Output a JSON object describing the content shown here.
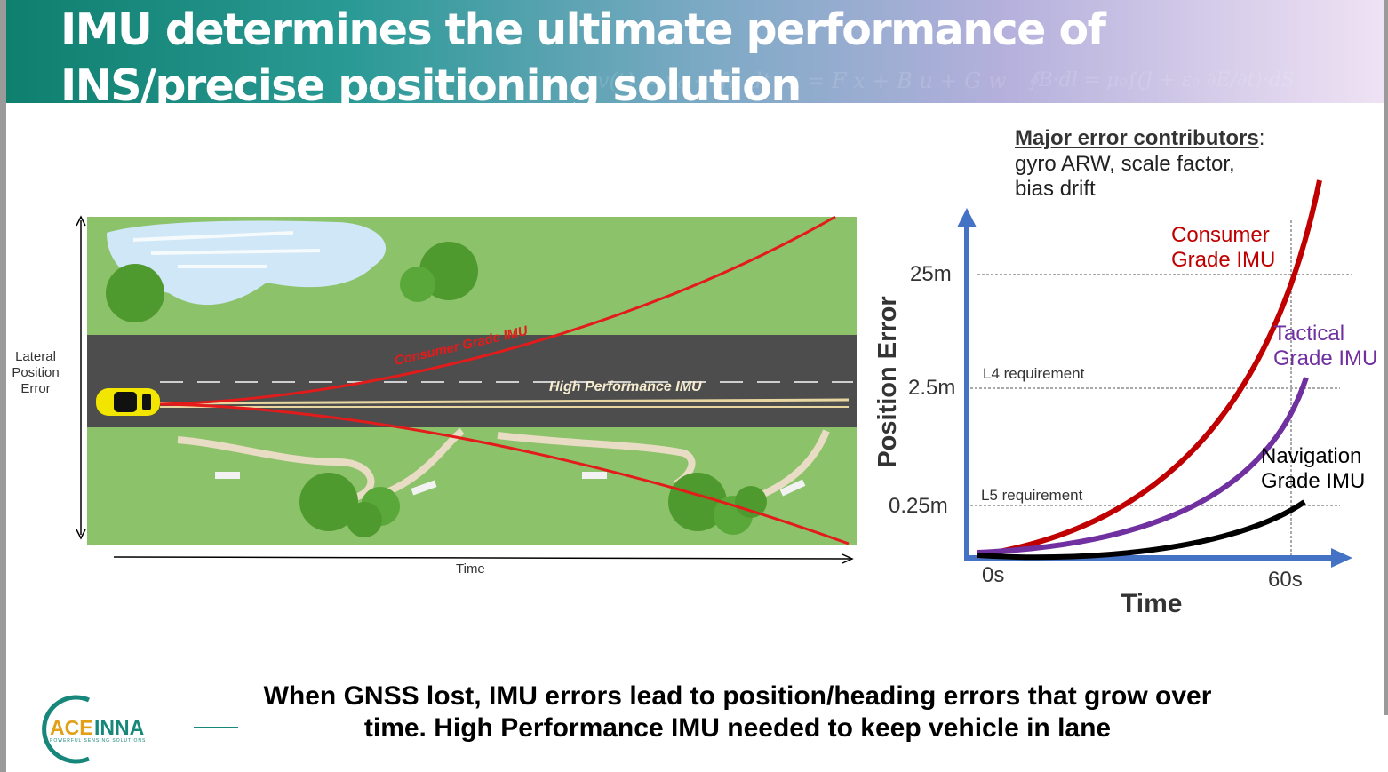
{
  "slide": {
    "title": "IMU determines the ultimate performance of INS/precise positioning solution",
    "background_formulas": [
      "v(t) = v₀ + ∫a dt",
      "x = F x + B u + G w",
      "∮B·dl = μ₀∫(J + ε₀ ∂E/∂t)·dS"
    ],
    "footer_text": "When GNSS lost, IMU errors lead to position/heading errors that grow over time.  High Performance IMU needed to keep vehicle in lane",
    "logo": {
      "name": "ACEINNA",
      "tagline": "POWERFUL SENSING SOLUTIONS",
      "ring_color": "#16877a",
      "text_color": "#e2a018"
    }
  },
  "road_illustration": {
    "y_label": "Lateral Position Error",
    "x_label": "Time",
    "curve_labels": {
      "consumer": "Consumer Grade IMU",
      "high_performance": "High Performance IMU"
    },
    "colors": {
      "grass": "#8cc26a",
      "road": "#4d4d4d",
      "error_curve": "#e31b1b",
      "hp_line": "#e8d7a0",
      "car": "#f2e600"
    }
  },
  "error_chart": {
    "contributors_heading": "Major error contributors",
    "contributors_colon": ":",
    "contributors_line1": "gyro ARW, scale factor,",
    "contributors_line2": "bias drift",
    "y_label": "Position Error",
    "x_label": "Time",
    "y_ticks": [
      "25m",
      "2.5m",
      "0.25m"
    ],
    "x_ticks": [
      "0s",
      "60s"
    ],
    "requirements": {
      "l4": "L4 requirement",
      "l5": "L5 requirement"
    },
    "series": [
      {
        "line1": "Consumer",
        "line2": "Grade IMU",
        "color": "#c00000"
      },
      {
        "line1": "Tactical",
        "line2": "Grade IMU",
        "color": "#7030a0"
      },
      {
        "line1": "Navigation",
        "line2": "Grade IMU",
        "color": "#000000"
      }
    ],
    "axis_color": "#4472c4"
  }
}
